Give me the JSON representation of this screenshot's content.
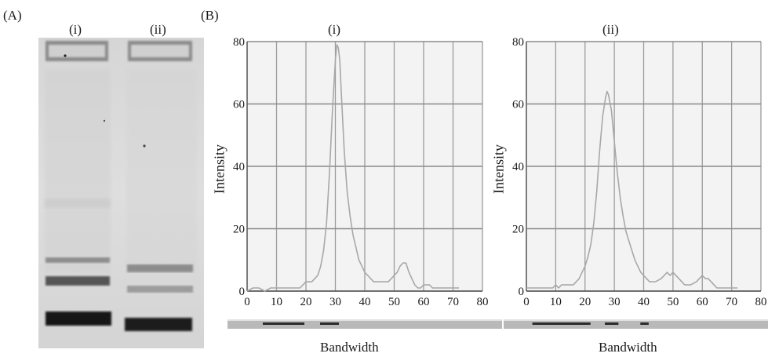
{
  "panel_a": {
    "label": "(A)",
    "lanes": [
      "(i)",
      "(ii)"
    ]
  },
  "panel_b": {
    "label": "(B)"
  },
  "chart_data": [
    {
      "type": "line",
      "title": "(i)",
      "xlabel": "Bandwidth",
      "ylabel": "Intensity",
      "xlim": [
        0,
        80
      ],
      "ylim": [
        0,
        80
      ],
      "xticks": [
        "0",
        "10",
        "20",
        "30",
        "40",
        "50",
        "60",
        "70",
        "80"
      ],
      "yticks": [
        "0",
        "20",
        "40",
        "60",
        "80"
      ],
      "grid": true,
      "color": "#a8a8a8",
      "series": [
        {
          "x": [
            0,
            2,
            4,
            6,
            8,
            10,
            12,
            14,
            16,
            18,
            20,
            22,
            24,
            25,
            26,
            27,
            28,
            29,
            30,
            30.5,
            31,
            31.5,
            32,
            33,
            34,
            35,
            36,
            37,
            38,
            39,
            40,
            41,
            42,
            43,
            44,
            45,
            46,
            48,
            49,
            50,
            51,
            52,
            53,
            54,
            55,
            56,
            57,
            58,
            59,
            60,
            61,
            62,
            63,
            64,
            65,
            66,
            68,
            70,
            72
          ],
          "y": [
            0,
            1,
            1,
            0,
            1,
            1,
            1,
            1,
            1,
            1,
            3,
            3,
            5,
            8,
            13,
            22,
            38,
            58,
            74,
            79,
            78,
            74,
            64,
            45,
            32,
            24,
            18,
            14,
            10,
            8,
            6,
            5,
            4,
            3,
            3,
            3,
            3,
            3,
            4,
            5,
            6,
            8,
            9,
            9,
            6,
            4,
            2,
            1,
            1,
            2,
            2,
            2,
            1,
            1,
            1,
            1,
            1,
            1,
            1
          ]
        }
      ]
    },
    {
      "type": "line",
      "title": "(ii)",
      "xlabel": "Bandwidth",
      "ylabel": "Intensity",
      "xlim": [
        0,
        80
      ],
      "ylim": [
        0,
        80
      ],
      "xticks": [
        "0",
        "10",
        "20",
        "30",
        "40",
        "50",
        "60",
        "70",
        "80"
      ],
      "yticks": [
        "0",
        "20",
        "40",
        "60",
        "80"
      ],
      "grid": true,
      "color": "#a8a8a8",
      "series": [
        {
          "x": [
            0,
            2,
            4,
            6,
            8,
            9,
            10,
            11,
            12,
            14,
            16,
            17,
            18,
            19,
            20,
            21,
            22,
            23,
            24,
            25,
            26,
            27,
            27.5,
            28,
            29,
            30,
            31,
            32,
            33,
            34,
            35,
            36,
            37,
            38,
            39,
            40,
            41,
            42,
            44,
            46,
            47,
            48,
            49,
            50,
            51,
            52,
            54,
            56,
            58,
            59,
            60,
            61,
            62,
            63,
            64,
            65,
            66,
            68,
            70,
            72
          ],
          "y": [
            1,
            1,
            1,
            1,
            1,
            1,
            2,
            1,
            2,
            2,
            2,
            3,
            4,
            6,
            8,
            11,
            15,
            22,
            32,
            45,
            56,
            62,
            64,
            63,
            58,
            48,
            38,
            30,
            24,
            19,
            16,
            13,
            10,
            8,
            6,
            5,
            4,
            3,
            3,
            4,
            5,
            6,
            5,
            6,
            5,
            4,
            2,
            2,
            3,
            4,
            5,
            4,
            4,
            3,
            2,
            1,
            1,
            1,
            1,
            1
          ]
        }
      ]
    }
  ],
  "bandwidth_bars": [
    {
      "segments": [
        [
          45,
          98
        ],
        [
          118,
          142
        ]
      ]
    },
    {
      "segments": [
        [
          38,
          115
        ],
        [
          134,
          152
        ],
        [
          181,
          192
        ]
      ]
    }
  ]
}
